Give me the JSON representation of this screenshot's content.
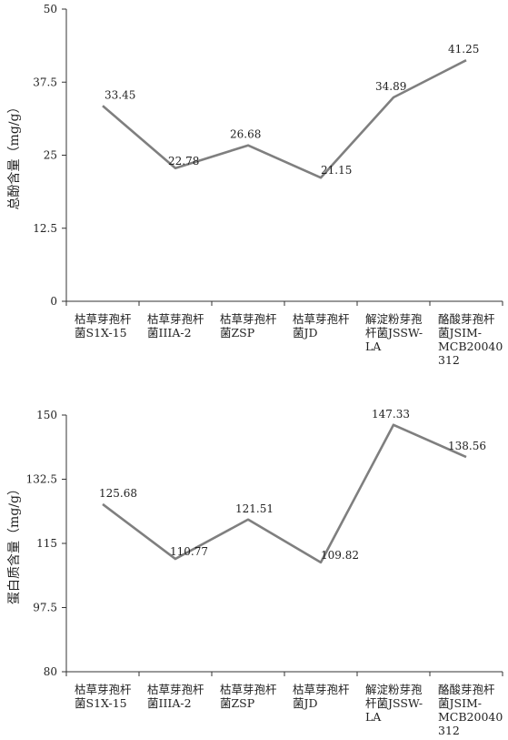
{
  "chart_data": [
    {
      "type": "line",
      "ylabel": "总酚含量（mg/g）",
      "ylim": [
        0,
        50
      ],
      "yticks": [
        "0",
        "12.5",
        "25",
        "37.5",
        "50"
      ],
      "categories": [
        "枯草芽孢杆菌S1X-15",
        "枯草芽孢杆菌IIIA-2",
        "枯草芽孢杆菌ZSP",
        "枯草芽孢杆菌JD",
        "解淀粉芽孢杆菌JSSW-LA",
        "酪酸芽孢杆菌JSIM-MCB20040312"
      ],
      "category_lines": [
        [
          "枯草芽孢杆",
          "菌S1X-15"
        ],
        [
          "枯草芽孢杆",
          "菌IIIA-2"
        ],
        [
          "枯草芽孢杆",
          "菌ZSP"
        ],
        [
          "枯草芽孢杆",
          "菌JD"
        ],
        [
          "解淀粉芽孢",
          "杆菌JSSW-",
          "LA"
        ],
        [
          "酪酸芽孢杆",
          "菌JSIM-",
          "MCB20040",
          "312"
        ]
      ],
      "values": [
        33.45,
        22.78,
        26.68,
        21.15,
        34.89,
        41.25
      ],
      "value_labels": [
        "33.45",
        "22.78",
        "26.68",
        "21.15",
        "34.89",
        "41.25"
      ],
      "line_color": "#7f7f7f",
      "legend": "none"
    },
    {
      "type": "line",
      "ylabel": "蛋白质含量（mg/g）",
      "ylim": [
        80,
        150
      ],
      "yticks": [
        "80",
        "97.5",
        "115",
        "132.5",
        "150"
      ],
      "categories": [
        "枯草芽孢杆菌S1X-15",
        "枯草芽孢杆菌IIIA-2",
        "枯草芽孢杆菌ZSP",
        "枯草芽孢杆菌JD",
        "解淀粉芽孢杆菌JSSW-LA",
        "酪酸芽孢杆菌JSIM-MCB20040312"
      ],
      "category_lines": [
        [
          "枯草芽孢杆",
          "菌S1X-15"
        ],
        [
          "枯草芽孢杆",
          "菌IIIA-2"
        ],
        [
          "枯草芽孢杆",
          "菌ZSP"
        ],
        [
          "枯草芽孢杆",
          "菌JD"
        ],
        [
          "解淀粉芽孢",
          "杆菌JSSW-",
          "LA"
        ],
        [
          "酪酸芽孢杆",
          "菌JSIM-",
          "MCB20040",
          "312"
        ]
      ],
      "values": [
        125.68,
        110.77,
        121.51,
        109.82,
        147.33,
        138.56
      ],
      "value_labels": [
        "125.68",
        "110.77",
        "121.51",
        "109.82",
        "147.33",
        "138.56"
      ],
      "line_color": "#7f7f7f",
      "legend": "none"
    }
  ]
}
